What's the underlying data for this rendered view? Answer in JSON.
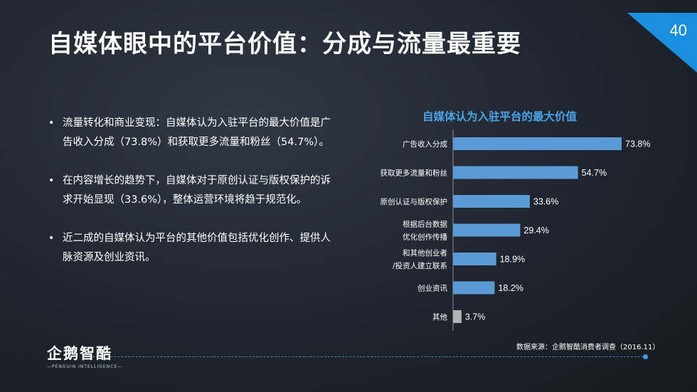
{
  "slide": {
    "title": "自媒体眼中的平台价值：分成与流量最重要",
    "page_number": "40",
    "accent": "#1a8fe0"
  },
  "bullets": [
    "流量转化和商业变现：自媒体认为入驻平台的最大价值是广告收入分成（73.8%）和获取更多流量和粉丝（54.7%）。",
    "在内容增长的趋势下，自媒体对于原创认证与版权保护的诉求开始显现（33.6%），整体运营环境将趋于规范化。",
    "近二成的自媒体认为平台的其他价值包括优化创作、提供人脉资源及创业资讯。"
  ],
  "chart_data": {
    "type": "bar",
    "orientation": "horizontal",
    "title": "自媒体认为入驻平台的最大价值",
    "categories": [
      [
        "广告收入分成"
      ],
      [
        "获取更多流量和粉丝"
      ],
      [
        "原创认证与版权保护"
      ],
      [
        "根据后台数据",
        "优化创作传播"
      ],
      [
        "和其他创业者",
        "/投资人建立联系"
      ],
      [
        "创业资讯"
      ],
      [
        "其他"
      ]
    ],
    "values": [
      73.8,
      54.7,
      33.6,
      29.4,
      18.9,
      18.2,
      3.7
    ],
    "value_labels": [
      "73.8%",
      "54.7%",
      "33.6%",
      "29.4%",
      "18.9%",
      "18.2%",
      "3.7%"
    ],
    "xlim": [
      0,
      80
    ],
    "bar_color": "#5b9bd5",
    "highlight_color": "#b3b3b3",
    "grid": false,
    "legend": "none"
  },
  "footer": {
    "source": "数据来源：企鹅智酷消费者调查（2016.11）",
    "logo_main": "企鹅智酷",
    "logo_sub": "—PENGUIN INTELLIGENCE—"
  }
}
